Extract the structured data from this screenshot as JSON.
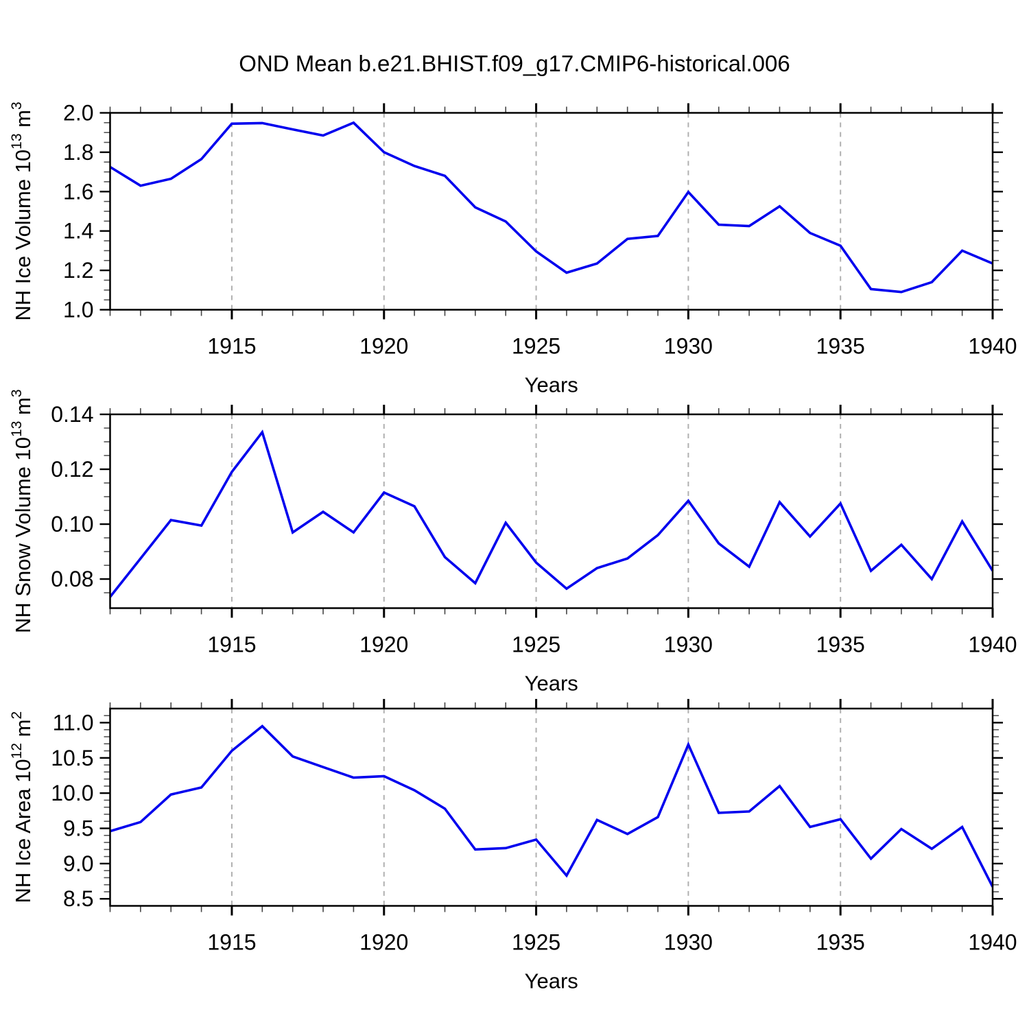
{
  "title": "OND Mean b.e21.BHIST.f09_g17.CMIP6-historical.006",
  "chart_data": {
    "type": "line",
    "xlabel": "Years",
    "x": [
      1911,
      1912,
      1913,
      1914,
      1915,
      1916,
      1917,
      1918,
      1919,
      1920,
      1921,
      1922,
      1923,
      1924,
      1925,
      1926,
      1927,
      1928,
      1929,
      1930,
      1931,
      1932,
      1933,
      1934,
      1935,
      1936,
      1937,
      1938,
      1939,
      1940
    ],
    "xlim": [
      1911,
      1940
    ],
    "x_major_ticks": [
      1915,
      1920,
      1925,
      1930,
      1935,
      1940
    ],
    "x_major_labels": [
      "1915",
      "1920",
      "1925",
      "1930",
      "1935",
      "1940"
    ],
    "x_grid_years": [
      1915,
      1920,
      1925,
      1930,
      1935
    ],
    "line_color": "#0000ee",
    "grid_color": "#b0b0b0",
    "axis_color": "#000000",
    "legend": "none",
    "grid": "vertical-dashed",
    "panels": [
      {
        "ylabel": "NH Ice Volume 10^13 m^3",
        "ylabel_parts": [
          {
            "t": "NH Ice Volume 10",
            "sup": false
          },
          {
            "t": "13",
            "sup": true
          },
          {
            "t": " m",
            "sup": false
          },
          {
            "t": "3",
            "sup": true
          }
        ],
        "ylim": [
          1.0,
          2.0
        ],
        "y_major_values": [
          2.0,
          1.8,
          1.6,
          1.4,
          1.2,
          1.0
        ],
        "y_major_labels": [
          "2.0",
          "1.8",
          "1.6",
          "1.4",
          "1.2",
          "1.0"
        ],
        "y_minor_step": 0.05,
        "values": [
          1.725,
          1.63,
          1.665,
          1.765,
          1.945,
          1.948,
          1.916,
          1.885,
          1.95,
          1.8,
          1.73,
          1.68,
          1.52,
          1.448,
          1.296,
          1.188,
          1.235,
          1.36,
          1.375,
          1.598,
          1.432,
          1.425,
          1.525,
          1.39,
          1.325,
          1.105,
          1.09,
          1.14,
          1.3,
          1.235
        ]
      },
      {
        "ylabel": "NH Snow Volume 10^13 m^3",
        "ylabel_parts": [
          {
            "t": "NH Snow Volume 10",
            "sup": false
          },
          {
            "t": "13",
            "sup": true
          },
          {
            "t": " m",
            "sup": false
          },
          {
            "t": "3",
            "sup": true
          }
        ],
        "ylim": [
          0.0694,
          0.14
        ],
        "y_major_values": [
          0.14,
          0.12,
          0.1,
          0.08
        ],
        "y_major_labels": [
          "0.14",
          "0.12",
          "0.10",
          "0.08"
        ],
        "y_minor_step": 0.005,
        "values": [
          0.0735,
          0.0875,
          0.1015,
          0.0995,
          0.119,
          0.1335,
          0.097,
          0.1045,
          0.097,
          0.1115,
          0.1065,
          0.088,
          0.0785,
          0.1005,
          0.086,
          0.0765,
          0.084,
          0.0875,
          0.096,
          0.1085,
          0.093,
          0.0845,
          0.108,
          0.0955,
          0.1075,
          0.083,
          0.0925,
          0.08,
          0.101,
          0.083
        ]
      },
      {
        "ylabel": "NH Ice Area 10^12 m^2",
        "ylabel_parts": [
          {
            "t": "NH Ice Area 10",
            "sup": false
          },
          {
            "t": "12",
            "sup": true
          },
          {
            "t": " m",
            "sup": false
          },
          {
            "t": "2",
            "sup": true
          }
        ],
        "ylim": [
          8.4,
          11.2
        ],
        "y_major_values": [
          11.0,
          10.5,
          10.0,
          9.5,
          9.0,
          8.5
        ],
        "y_major_labels": [
          "11.0",
          "10.5",
          "10.0",
          "9.5",
          "9.0",
          "8.5"
        ],
        "y_minor_step": 0.1,
        "values": [
          9.46,
          9.59,
          9.98,
          10.08,
          10.6,
          10.95,
          10.52,
          10.37,
          10.22,
          10.24,
          10.04,
          9.78,
          9.2,
          9.22,
          9.34,
          8.83,
          9.62,
          9.42,
          9.66,
          10.69,
          9.72,
          9.74,
          10.1,
          9.52,
          9.63,
          9.07,
          9.49,
          9.21,
          9.52,
          8.67
        ]
      }
    ]
  }
}
